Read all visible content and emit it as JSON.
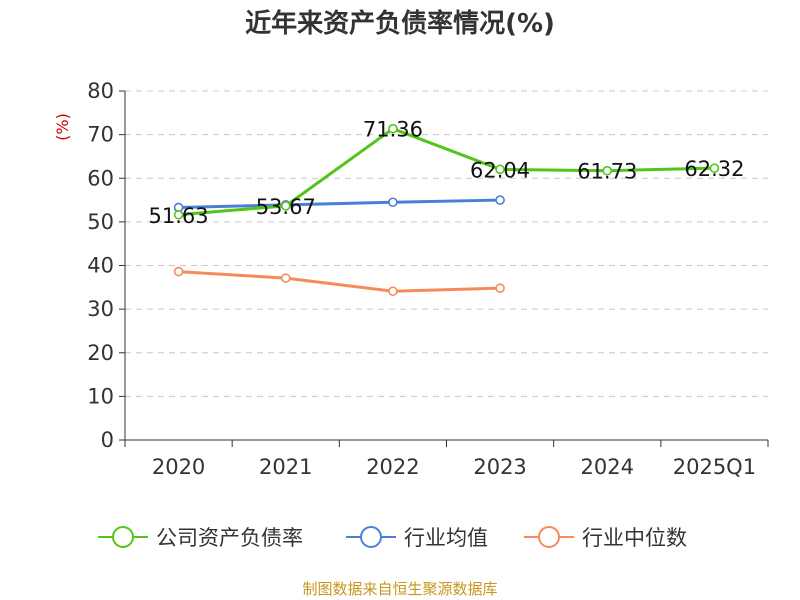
{
  "chart_data": {
    "type": "line",
    "title": "近年来资产负债率情况(%)",
    "ylabel": "(%)",
    "xlabel": "",
    "categories": [
      "2020",
      "2021",
      "2022",
      "2023",
      "2024",
      "2025Q1"
    ],
    "ylim": [
      0,
      80
    ],
    "yticks": [
      0,
      10,
      20,
      30,
      40,
      50,
      60,
      70,
      80
    ],
    "grid": true,
    "legend_position": "bottom",
    "series": [
      {
        "name": "公司资产负债率",
        "color": "#52c41a",
        "values": [
          51.63,
          53.67,
          71.36,
          62.04,
          61.73,
          62.32
        ],
        "labels": [
          "51.63",
          "53.67",
          "71.36",
          "62.04",
          "61.73",
          "62.32"
        ]
      },
      {
        "name": "行业均值",
        "color": "#4a7fd9",
        "values": [
          53.3,
          53.9,
          54.5,
          55.0,
          null,
          null
        ]
      },
      {
        "name": "行业中位数",
        "color": "#f68b5a",
        "values": [
          38.6,
          37.1,
          34.1,
          34.8,
          null,
          null
        ]
      }
    ]
  },
  "source": "制图数据来自恒生聚源数据库"
}
